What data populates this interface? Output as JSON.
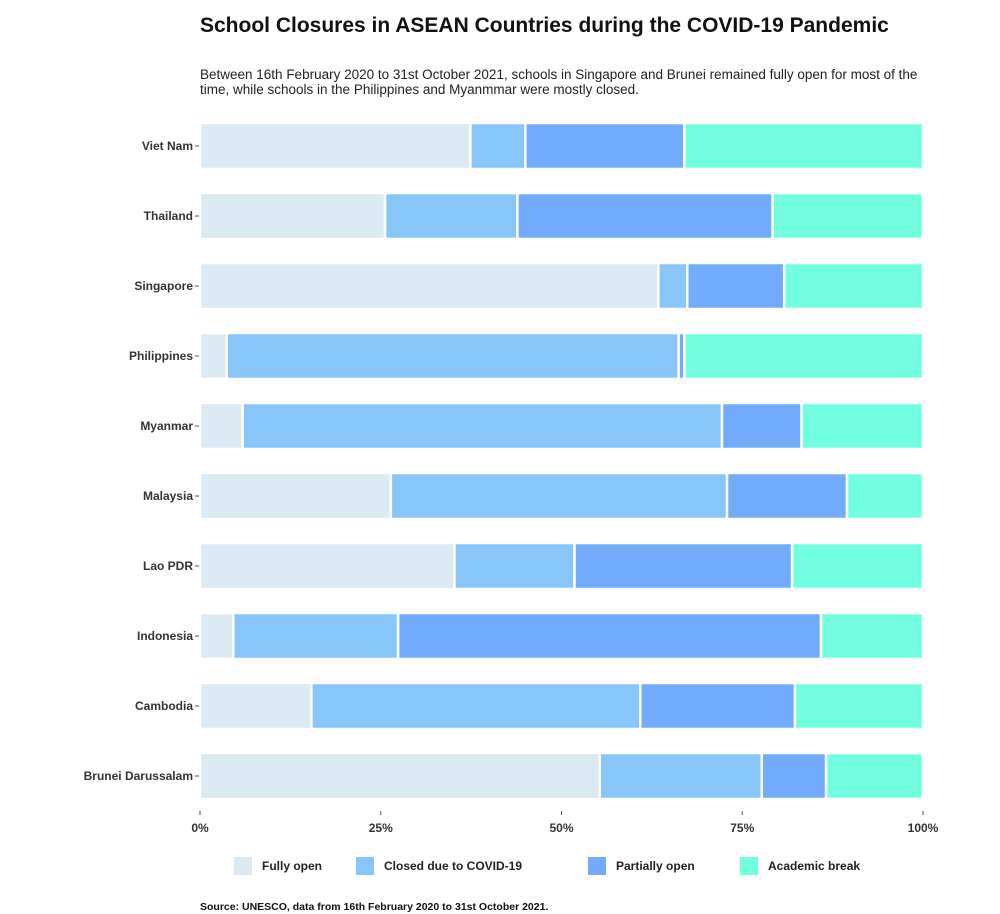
{
  "title": "School Closures in ASEAN Countries during the COVID-19 Pandemic",
  "subtitle": "Between 16th February 2020 to 31st October 2021, schools in Singapore and Brunei remained fully open for most of the time, while schools in the Philippines and Myanmmar were mostly closed.",
  "source": "Source: UNESCO, data from 16th February 2020 to 31st October 2021.",
  "legend": [
    {
      "label": "Fully open",
      "color": "#dbe9f2"
    },
    {
      "label": "Closed due to COVID-19",
      "color": "#88c6fa"
    },
    {
      "label": "Partially open",
      "color": "#72abfc"
    },
    {
      "label": "Academic break",
      "color": "#72ffe0"
    }
  ],
  "chart_data": {
    "type": "bar",
    "orientation": "horizontal",
    "stacked": true,
    "normalized": true,
    "categories": [
      "Viet Nam",
      "Thailand",
      "Singapore",
      "Philippines",
      "Myanmar",
      "Malaysia",
      "Lao PDR",
      "Indonesia",
      "Cambodia",
      "Brunei Darussalam"
    ],
    "series": [
      {
        "name": "Fully open",
        "color": "#dbe9f2",
        "values": [
          37.4,
          25.6,
          63.4,
          3.7,
          5.9,
          26.4,
          35.2,
          4.6,
          15.4,
          55.3
        ]
      },
      {
        "name": "Closed due to COVID-19",
        "color": "#88c6fa",
        "values": [
          7.6,
          18.3,
          4.0,
          62.5,
          66.3,
          46.5,
          16.6,
          22.8,
          45.5,
          22.4
        ]
      },
      {
        "name": "Partially open",
        "color": "#72abfc",
        "values": [
          22.0,
          35.3,
          13.4,
          0.8,
          11.0,
          16.6,
          30.1,
          58.5,
          21.4,
          8.9
        ]
      },
      {
        "name": "Academic break",
        "color": "#72ffe0",
        "values": [
          33.0,
          20.8,
          19.2,
          33.0,
          16.8,
          10.5,
          18.1,
          14.1,
          17.7,
          13.4
        ]
      }
    ],
    "xlim": [
      0,
      100
    ],
    "xticks": [
      "0%",
      "25%",
      "50%",
      "75%",
      "100%"
    ],
    "grid": false,
    "legend_position": "bottom"
  }
}
